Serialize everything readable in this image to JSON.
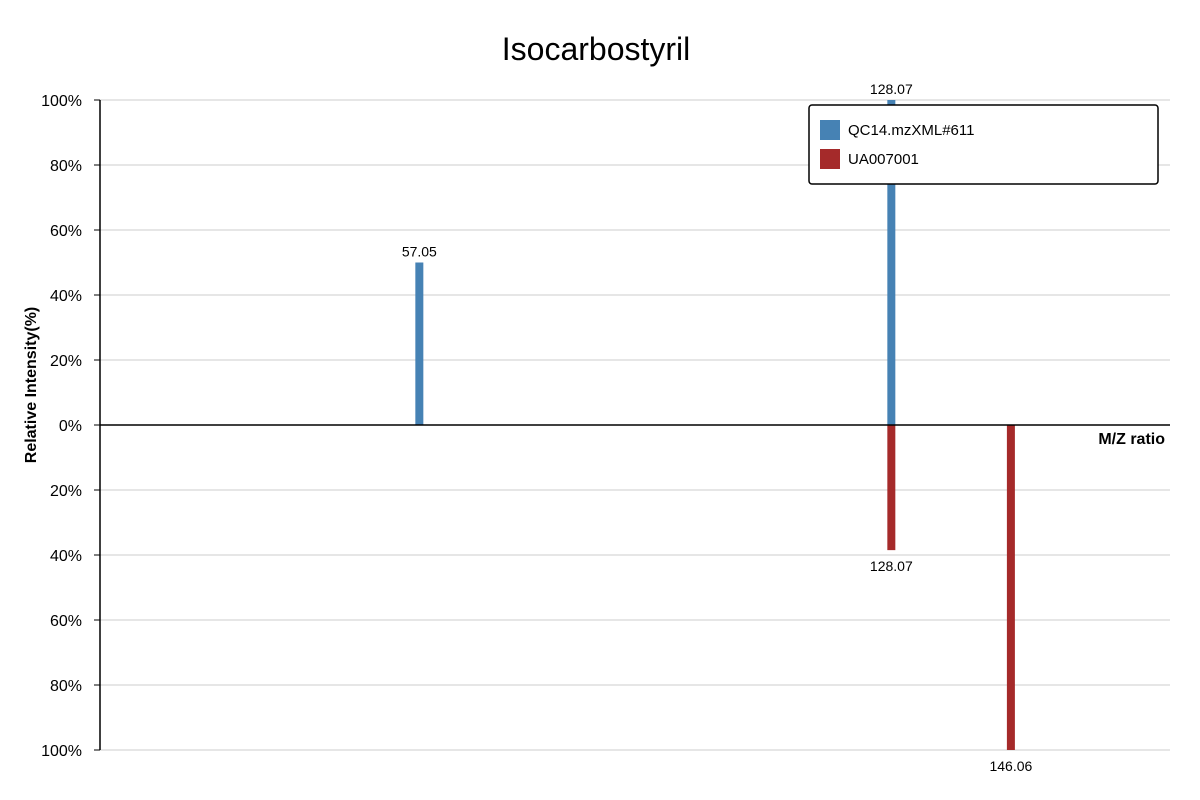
{
  "chart_data": {
    "type": "bar",
    "title": "Isocarbostyril",
    "xlabel": "M/Z ratio",
    "ylabel": "Relative Intensity(%)",
    "ylim": [
      -100,
      100
    ],
    "yticks": [
      {
        "value": 100,
        "label": "100%"
      },
      {
        "value": 80,
        "label": "80%"
      },
      {
        "value": 60,
        "label": "60%"
      },
      {
        "value": 40,
        "label": "40%"
      },
      {
        "value": 20,
        "label": "20%"
      },
      {
        "value": 0,
        "label": "0%"
      },
      {
        "value": -20,
        "label": "20%"
      },
      {
        "value": -40,
        "label": "40%"
      },
      {
        "value": -60,
        "label": "60%"
      },
      {
        "value": -80,
        "label": "80%"
      },
      {
        "value": -100,
        "label": "100%"
      }
    ],
    "xlim": [
      9,
      170
    ],
    "grid": true,
    "legend_position": "top-right",
    "series": [
      {
        "name": "QC14.mzXML#611",
        "color": "#4682b4",
        "direction": "up",
        "peaks": [
          {
            "mz": 57.05,
            "label": "57.05",
            "intensity": 50
          },
          {
            "mz": 128.07,
            "label": "128.07",
            "intensity": 100
          }
        ]
      },
      {
        "name": "UA007001",
        "color": "#a52a2a",
        "direction": "down",
        "peaks": [
          {
            "mz": 128.07,
            "label": "128.07",
            "intensity": 38.5
          },
          {
            "mz": 146.06,
            "label": "146.06",
            "intensity": 100
          }
        ]
      }
    ]
  }
}
